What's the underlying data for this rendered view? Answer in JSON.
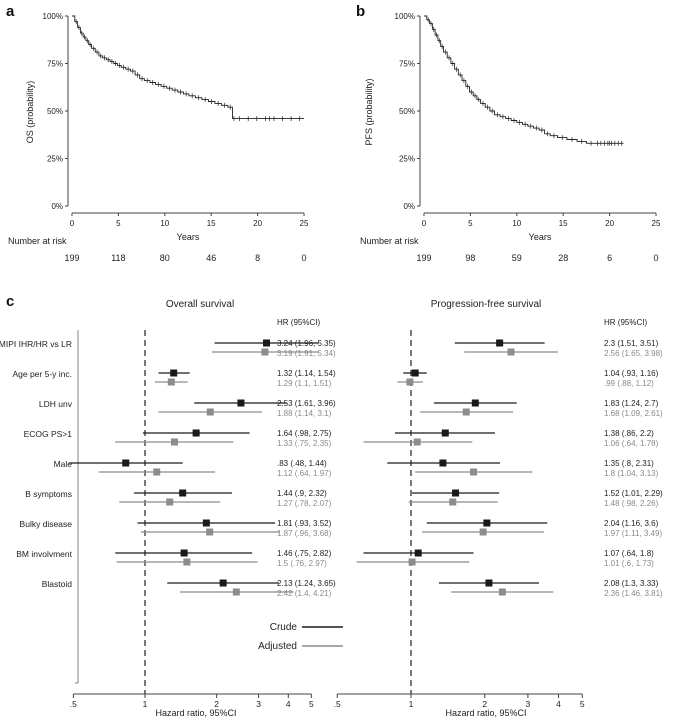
{
  "panels": {
    "a_letter": "a",
    "b_letter": "b",
    "c_letter": "c"
  },
  "km": {
    "y_ticks": [
      "0%",
      "25%",
      "50%",
      "75%",
      "100%"
    ],
    "x_ticks": [
      "0",
      "5",
      "10",
      "15",
      "20",
      "25"
    ],
    "number_at_risk_label": "Number at risk",
    "a": {
      "ylabel": "OS (probability)",
      "xlabel": "Years",
      "at_risk": [
        "199",
        "118",
        "80",
        "46",
        "8",
        "0"
      ]
    },
    "b": {
      "ylabel": "PFS (probability)",
      "xlabel": "Years",
      "at_risk": [
        "199",
        "98",
        "59",
        "28",
        "6",
        "0"
      ]
    }
  },
  "forest": {
    "left_title": "Overall survival",
    "right_title": "Progression-free survival",
    "hr_header": "HR (95%CI)",
    "x_ticks": [
      ".5",
      "1",
      "2",
      "3",
      "4",
      "5"
    ],
    "xlabel": "Hazard ratio, 95%CI",
    "legend": {
      "crude": "Crude",
      "adjusted": "Adjusted"
    },
    "colors": {
      "crude": "#1a1a1a",
      "adjusted": "#8c8c8c"
    },
    "rows": [
      "MIPI IHR/HR vs LR",
      "Age per 5-y inc.",
      "LDH unv",
      "ECOG PS>1",
      "Male",
      "B symptoms",
      "Bulky disease",
      "BM involvment",
      "Blastoid"
    ],
    "os_text": [
      [
        "3.24 (1.96, 5.35)",
        "3.19 (1.91, 5.34)"
      ],
      [
        "1.32 (1.14, 1.54)",
        "1.29 (1.1, 1.51)"
      ],
      [
        "2.53 (1.61, 3.96)",
        "1.88 (1.14, 3.1)"
      ],
      [
        "1.64 (.98, 2.75)",
        "1.33 (.75, 2.35)"
      ],
      [
        ".83 (.48, 1.44)",
        "1.12 (.64, 1.97)"
      ],
      [
        "1.44 (.9, 2.32)",
        "1.27 (.78, 2.07)"
      ],
      [
        "1.81 (.93, 3.52)",
        "1.87 (.96, 3.68)"
      ],
      [
        "1.46 (.75, 2.82)",
        "1.5 (.76, 2.97)"
      ],
      [
        "2.13 (1.24, 3.65)",
        "2.42 (1.4, 4.21)"
      ]
    ],
    "pfs_text": [
      [
        "2.3 (1.51, 3.51)",
        "2.56 (1.65, 3.98)"
      ],
      [
        "1.04 (.93, 1.16)",
        ".99 (.88, 1.12)"
      ],
      [
        "1.83 (1.24, 2.7)",
        "1.68 (1.09, 2.61)"
      ],
      [
        "1.38 (.86, 2.2)",
        "1.06 (.64, 1.78)"
      ],
      [
        "1.35 (.8, 2.31)",
        "1.8 (1.04, 3.13)"
      ],
      [
        "1.52 (1.01, 2.29)",
        "1.48 (.98, 2.26)"
      ],
      [
        "2.04 (1.16, 3.6)",
        "1.97 (1.11, 3.49)"
      ],
      [
        "1.07 (.64, 1.8)",
        "1.01 (.6, 1.73)"
      ],
      [
        "2.08 (1.3, 3.33)",
        "2.36 (1.46, 3.81)"
      ]
    ]
  },
  "chart_data": [
    {
      "type": "line",
      "title": "OS (probability)",
      "xlabel": "Years",
      "ylabel": "OS (probability)",
      "xlim": [
        0,
        25
      ],
      "ylim": [
        0,
        1
      ],
      "series": [
        {
          "x": [
            0,
            0.3,
            0.6,
            0.9,
            1.2,
            1.5,
            1.8,
            2.1,
            2.5,
            2.9,
            3.3,
            3.7,
            4.1,
            4.5,
            4.9,
            5.3,
            5.8,
            6.3,
            6.8,
            7.3,
            7.8,
            8.4,
            9.0,
            9.6,
            10.2,
            10.8,
            11.4,
            12.0,
            12.6,
            13.3,
            14.0,
            14.7,
            15.4,
            16.1,
            16.8,
            17.3,
            17.6,
            25
          ],
          "y": [
            1.0,
            0.97,
            0.94,
            0.91,
            0.89,
            0.87,
            0.85,
            0.83,
            0.81,
            0.79,
            0.78,
            0.77,
            0.76,
            0.75,
            0.74,
            0.73,
            0.72,
            0.71,
            0.69,
            0.67,
            0.66,
            0.65,
            0.64,
            0.63,
            0.62,
            0.61,
            0.6,
            0.59,
            0.58,
            0.57,
            0.56,
            0.55,
            0.54,
            0.53,
            0.52,
            0.46,
            0.46,
            0.46
          ]
        }
      ]
    },
    {
      "type": "line",
      "title": "PFS (probability)",
      "xlabel": "Years",
      "ylabel": "PFS (probability)",
      "xlim": [
        0,
        25
      ],
      "ylim": [
        0,
        1
      ],
      "series": [
        {
          "x": [
            0,
            0.3,
            0.6,
            0.9,
            1.2,
            1.5,
            1.8,
            2.1,
            2.5,
            2.9,
            3.3,
            3.7,
            4.1,
            4.5,
            4.9,
            5.3,
            5.7,
            6.1,
            6.6,
            7.1,
            7.6,
            8.2,
            8.8,
            9.4,
            10.0,
            10.6,
            11.2,
            11.8,
            12.4,
            13.0,
            13.6,
            14.4,
            15.4,
            16.5,
            17.5,
            18.5,
            21.5
          ],
          "y": [
            1.0,
            0.98,
            0.96,
            0.93,
            0.9,
            0.87,
            0.84,
            0.81,
            0.78,
            0.75,
            0.72,
            0.69,
            0.66,
            0.63,
            0.6,
            0.58,
            0.56,
            0.54,
            0.52,
            0.5,
            0.48,
            0.47,
            0.46,
            0.45,
            0.44,
            0.43,
            0.42,
            0.41,
            0.4,
            0.38,
            0.37,
            0.36,
            0.35,
            0.34,
            0.33,
            0.33,
            0.33
          ]
        }
      ]
    },
    {
      "type": "scatter",
      "title": "Overall survival",
      "xlabel": "Hazard ratio, 95%CI",
      "scale": "log",
      "categories": [
        "MIPI IHR/HR vs LR",
        "Age per 5-y inc.",
        "LDH unv",
        "ECOG PS>1",
        "Male",
        "B symptoms",
        "Bulky disease",
        "BM involvment",
        "Blastoid"
      ],
      "series": [
        {
          "name": "Crude",
          "values": [
            3.24,
            1.32,
            2.53,
            1.64,
            0.83,
            1.44,
            1.81,
            1.46,
            2.13
          ],
          "lower": [
            1.96,
            1.14,
            1.61,
            0.98,
            0.48,
            0.9,
            0.93,
            0.75,
            1.24
          ],
          "upper": [
            5.35,
            1.54,
            3.96,
            2.75,
            1.44,
            2.32,
            3.52,
            2.82,
            3.65
          ]
        },
        {
          "name": "Adjusted",
          "values": [
            3.19,
            1.29,
            1.88,
            1.33,
            1.12,
            1.27,
            1.87,
            1.5,
            2.42
          ],
          "lower": [
            1.91,
            1.1,
            1.14,
            0.75,
            0.64,
            0.78,
            0.96,
            0.76,
            1.4
          ],
          "upper": [
            5.34,
            1.51,
            3.1,
            2.35,
            1.97,
            2.07,
            3.68,
            2.97,
            4.21
          ]
        }
      ]
    },
    {
      "type": "scatter",
      "title": "Progression-free survival",
      "xlabel": "Hazard ratio, 95%CI",
      "scale": "log",
      "categories": [
        "MIPI IHR/HR vs LR",
        "Age per 5-y inc.",
        "LDH unv",
        "ECOG PS>1",
        "Male",
        "B symptoms",
        "Bulky disease",
        "BM involvment",
        "Blastoid"
      ],
      "series": [
        {
          "name": "Crude",
          "values": [
            2.3,
            1.04,
            1.83,
            1.38,
            1.35,
            1.52,
            2.04,
            1.07,
            2.08
          ],
          "lower": [
            1.51,
            0.93,
            1.24,
            0.86,
            0.8,
            1.01,
            1.16,
            0.64,
            1.3
          ],
          "upper": [
            3.51,
            1.16,
            2.7,
            2.2,
            2.31,
            2.29,
            3.6,
            1.8,
            3.33
          ]
        },
        {
          "name": "Adjusted",
          "values": [
            2.56,
            0.99,
            1.68,
            1.06,
            1.8,
            1.48,
            1.97,
            1.01,
            2.36
          ],
          "lower": [
            1.65,
            0.88,
            1.09,
            0.64,
            1.04,
            0.98,
            1.11,
            0.6,
            1.46
          ],
          "upper": [
            3.98,
            1.12,
            2.61,
            1.78,
            3.13,
            2.26,
            3.49,
            1.73,
            3.81
          ]
        }
      ]
    }
  ]
}
